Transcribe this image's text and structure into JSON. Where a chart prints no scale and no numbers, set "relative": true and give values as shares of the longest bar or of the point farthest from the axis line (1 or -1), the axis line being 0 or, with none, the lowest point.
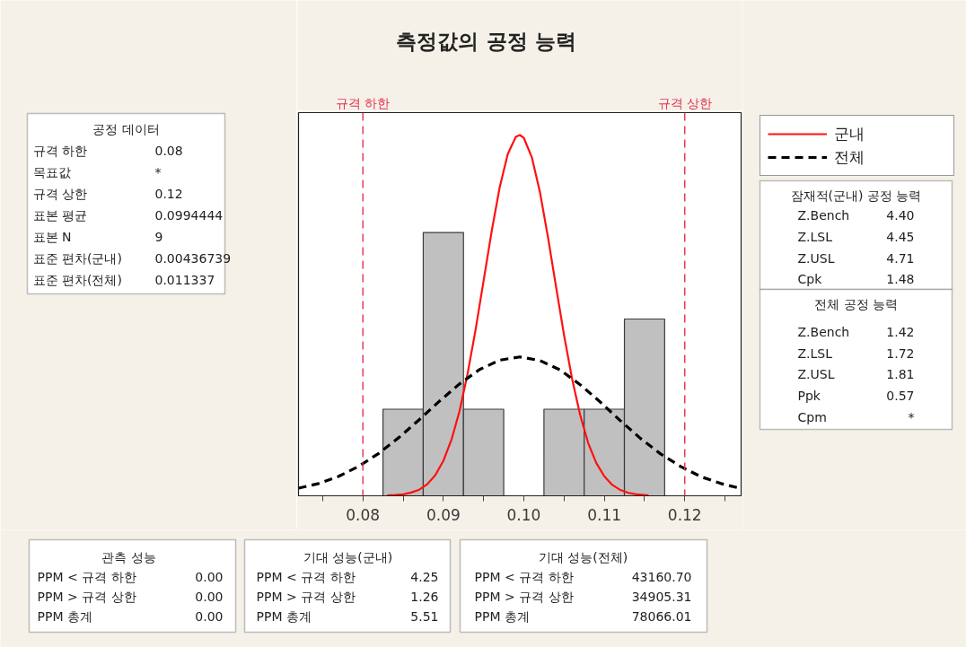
{
  "chart_data": {
    "type": "histogram",
    "title": "측정값의 공정 능력",
    "relative": true,
    "bins": [
      0.0825,
      0.0875,
      0.0925,
      0.0975,
      0.1025,
      0.1075,
      0.1125,
      0.1175
    ],
    "series": [
      {
        "color": "#c0c0c0",
        "values": [
          0.24,
          0.73,
          0.24,
          0,
          0.24,
          0.24,
          0.49
        ]
      },
      {
        "type": "line",
        "name": "군내",
        "color": "#ff1010",
        "line_style": "solid",
        "x": [
          0.083,
          0.084,
          0.085,
          0.086,
          0.087,
          0.088,
          0.089,
          0.09,
          0.091,
          0.092,
          0.093,
          0.094,
          0.095,
          0.096,
          0.097,
          0.098,
          0.099,
          0.0995,
          0.1,
          0.101,
          0.102,
          0.103,
          0.104,
          0.105,
          0.106,
          0.107,
          0.108,
          0.109,
          0.11,
          0.111,
          0.112,
          0.113,
          0.114,
          0.115,
          0.1155
        ],
        "values": [
          0.001,
          0.002,
          0.004,
          0.009,
          0.017,
          0.032,
          0.057,
          0.097,
          0.155,
          0.234,
          0.337,
          0.46,
          0.596,
          0.733,
          0.855,
          0.947,
          0.995,
          1.0,
          0.992,
          0.938,
          0.842,
          0.717,
          0.58,
          0.445,
          0.324,
          0.224,
          0.146,
          0.091,
          0.054,
          0.03,
          0.016,
          0.008,
          0.004,
          0.002,
          0.001
        ]
      },
      {
        "type": "line",
        "name": "전체",
        "color": "#000000",
        "line_style": "dashed",
        "x": [
          0.072,
          0.0745,
          0.077,
          0.0795,
          0.082,
          0.0845,
          0.087,
          0.0895,
          0.092,
          0.0945,
          0.097,
          0.0995,
          0.102,
          0.1045,
          0.107,
          0.1095,
          0.112,
          0.1145,
          0.117,
          0.1195,
          0.122,
          0.1245,
          0.127
        ],
        "values": [
          0.021,
          0.034,
          0.054,
          0.082,
          0.118,
          0.162,
          0.211,
          0.262,
          0.31,
          0.35,
          0.376,
          0.385,
          0.375,
          0.349,
          0.308,
          0.26,
          0.208,
          0.159,
          0.116,
          0.081,
          0.053,
          0.034,
          0.02
        ]
      }
    ],
    "xlim": [
      0.072,
      0.127
    ],
    "xticks": [
      {
        "value": 0.075,
        "label": null
      },
      0.08,
      {
        "value": 0.085,
        "label": null
      },
      0.09,
      {
        "value": 0.095,
        "label": null
      },
      {
        "value": 0.1,
        "label": "0.10"
      },
      {
        "value": 0.105,
        "label": null
      },
      0.11,
      {
        "value": 0.115,
        "label": null
      },
      0.12,
      {
        "value": 0.125,
        "label": null
      }
    ],
    "ref_lines": [
      {
        "axis": "x",
        "value": 0.08,
        "label": "규격 하한",
        "color": "#e23050",
        "line_style": "dashed"
      },
      {
        "axis": "x",
        "value": 0.12,
        "label": "규격 상한",
        "color": "#e23050",
        "line_style": "dashed"
      }
    ],
    "legend": "right",
    "annotations": [
      "공정 데이터",
      "규격 하한",
      "0.08",
      "목표값",
      "*",
      "규격 상한",
      "0.12",
      "표본 평균",
      "0.0994444",
      "표본 N",
      "9",
      "표준 편차(군내)",
      "0.00436739",
      "표준 편차(전체)",
      "0.011337",
      "잠재적(군내) 공정 능력",
      "Z.Bench",
      "4.40",
      "Z.LSL",
      "4.45",
      "Z.USL",
      "4.71",
      "Cpk",
      "1.48",
      "전체 공정 능력",
      "Z.Bench",
      "1.42",
      "Z.LSL",
      "1.72",
      "Z.USL",
      "1.81",
      "Ppk",
      "0.57",
      "Cpm",
      "*",
      "관측 성능",
      "PPM < 규격 하한",
      "0.00",
      "PPM > 규격 상한",
      "0.00",
      "PPM 총계",
      "0.00",
      "기대 성능(군내)",
      "PPM < 규격 하한",
      "4.25",
      "PPM > 규격 상한",
      "1.26",
      "PPM 총계",
      "5.51",
      "기대 성능(전체)",
      "PPM < 규격 하한",
      "43160.70",
      "PPM > 규격 상한",
      "34905.31",
      "PPM 총계",
      "78066.01"
    ]
  }
}
